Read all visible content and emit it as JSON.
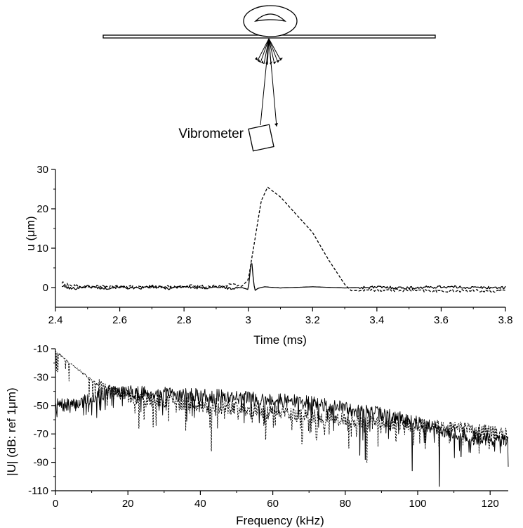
{
  "diagram": {
    "instrument_label": "Vibrometer"
  },
  "chart_data": [
    {
      "type": "line",
      "title": "",
      "xlabel": "Time (ms)",
      "ylabel": "u (μm)",
      "xlim": [
        2.4,
        3.8
      ],
      "ylim": [
        -5,
        30
      ],
      "xticks": [
        2.4,
        2.6,
        2.8,
        3,
        3.2,
        3.4,
        3.6,
        3.8
      ],
      "xtick_labels": [
        "2.4",
        "2.6",
        "2.8",
        "3",
        "3.2",
        "3.4",
        "3.6",
        "3.8"
      ],
      "yticks": [
        0,
        10,
        20,
        30
      ],
      "ytick_labels": [
        "0",
        "10",
        "20",
        "30"
      ],
      "grid": false,
      "legend": "none",
      "series": [
        {
          "style": "solid",
          "x": [
            2.42,
            2.45,
            2.5,
            2.55,
            2.6,
            2.65,
            2.7,
            2.75,
            2.8,
            2.85,
            2.9,
            2.95,
            2.98,
            3.0,
            3.005,
            3.01,
            3.015,
            3.02,
            3.03,
            3.05,
            3.1,
            3.2,
            3.3,
            3.4,
            3.5,
            3.6,
            3.7,
            3.8
          ],
          "y": [
            0.4,
            -0.3,
            0.3,
            -0.2,
            0.2,
            -0.3,
            0.3,
            -0.2,
            0.3,
            -0.2,
            0.2,
            -0.3,
            0.0,
            -0.5,
            3.5,
            7.5,
            2.5,
            -0.8,
            -0.2,
            0.2,
            -0.1,
            0.2,
            -0.1,
            0.1,
            -0.1,
            0.2,
            0.0,
            0.0
          ]
        },
        {
          "style": "dashed",
          "x": [
            2.42,
            2.45,
            2.5,
            2.6,
            2.7,
            2.8,
            2.9,
            2.95,
            2.98,
            3.0,
            3.02,
            3.04,
            3.06,
            3.1,
            3.2,
            3.25,
            3.3,
            3.32,
            3.4,
            3.5,
            3.6,
            3.7,
            3.8
          ],
          "y": [
            1.2,
            0.5,
            0.2,
            0.3,
            0.0,
            0.4,
            0.3,
            0.8,
            0.3,
            2.0,
            12.0,
            22.0,
            25.5,
            23.0,
            14.0,
            7.0,
            0.8,
            -0.8,
            -0.6,
            -0.7,
            -0.9,
            -0.8,
            -0.9
          ]
        }
      ]
    },
    {
      "type": "line",
      "title": "",
      "xlabel": "Frequency (kHz)",
      "ylabel": "|U| (dB: ref 1μm)",
      "xlim": [
        0,
        125
      ],
      "ylim": [
        -110,
        -10
      ],
      "xticks": [
        0,
        20,
        40,
        60,
        80,
        100,
        120
      ],
      "xtick_labels": [
        "0",
        "20",
        "40",
        "60",
        "80",
        "100",
        "120"
      ],
      "yticks": [
        -110,
        -90,
        -70,
        -50,
        -30,
        -10
      ],
      "ytick_labels": [
        "-110",
        "-90",
        "-70",
        "-50",
        "-30",
        "-10"
      ],
      "grid": false,
      "legend": "none",
      "series": [
        {
          "style": "solid",
          "trend_x": [
            0,
            5,
            12,
            17,
            30,
            50,
            60,
            70,
            80,
            90,
            100,
            110,
            125
          ],
          "trend_y": [
            -50,
            -50,
            -42,
            -40,
            -42,
            -44,
            -46,
            -48,
            -52,
            -56,
            -62,
            -70,
            -76
          ],
          "dips": [
            [
              84,
              -85
            ],
            [
              85.5,
              -88
            ],
            [
              98.5,
              -96
            ],
            [
              106,
              -107
            ],
            [
              112,
              -86
            ]
          ]
        },
        {
          "style": "dashed",
          "trend_x": [
            0,
            3,
            8,
            12,
            15,
            20,
            30,
            40,
            50,
            60,
            70,
            80,
            90,
            100,
            110,
            125
          ],
          "trend_y": [
            -12,
            -18,
            -28,
            -36,
            -40,
            -44,
            -47,
            -50,
            -52,
            -55,
            -57,
            -60,
            -62,
            -64,
            -66,
            -70
          ],
          "dips": [
            [
              23,
              -66
            ],
            [
              24.5,
              -60
            ],
            [
              27,
              -65
            ],
            [
              43,
              -82
            ],
            [
              58,
              -74
            ],
            [
              68,
              -77
            ],
            [
              81,
              -80
            ],
            [
              86,
              -90
            ]
          ]
        }
      ]
    }
  ]
}
